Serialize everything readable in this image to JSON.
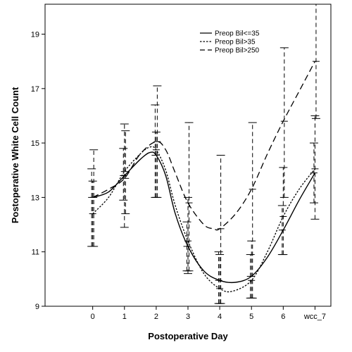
{
  "chart_data": {
    "type": "line",
    "title": "",
    "xlabel": "Postoperative Day",
    "ylabel": "Postoperative White Cell Count",
    "categories": [
      "0",
      "1",
      "2",
      "3",
      "4",
      "5",
      "6",
      "wcc_7"
    ],
    "x_range": [
      -1.5,
      7.5
    ],
    "ylim": [
      9,
      20.1
    ],
    "yticks": [
      9,
      11,
      13,
      15,
      17,
      19
    ],
    "grid": false,
    "legend_position": "top-right",
    "series": [
      {
        "name": "Preop Bil<=35",
        "style": "solid",
        "curve": [
          [
            0,
            13.0
          ],
          [
            0.5,
            13.2
          ],
          [
            1,
            13.8
          ],
          [
            1.5,
            14.4
          ],
          [
            1.8,
            14.65
          ],
          [
            2,
            14.55
          ],
          [
            2.3,
            13.8
          ],
          [
            2.6,
            12.4
          ],
          [
            3,
            11.2
          ],
          [
            3.5,
            10.3
          ],
          [
            4,
            9.95
          ],
          [
            4.5,
            9.88
          ],
          [
            5,
            10.1
          ],
          [
            5.5,
            10.8
          ],
          [
            6,
            11.8
          ],
          [
            6.5,
            12.9
          ],
          [
            7,
            13.9
          ]
        ],
        "error_bars": [
          {
            "x": 0,
            "mean": 13.0,
            "low": 11.2,
            "high": 14.05
          },
          {
            "x": 1,
            "mean": 13.8,
            "low": 12.9,
            "high": 14.8
          },
          {
            "x": 2,
            "mean": 14.55,
            "low": 13.0,
            "high": 16.4
          },
          {
            "x": 3,
            "mean": 11.2,
            "low": 10.3,
            "high": 12.1
          },
          {
            "x": 4,
            "mean": 9.95,
            "low": 9.1,
            "high": 11.0
          },
          {
            "x": 5,
            "mean": 10.1,
            "low": 9.3,
            "high": 10.9
          },
          {
            "x": 6,
            "mean": 11.8,
            "low": 10.9,
            "high": 12.7
          },
          {
            "x": 7,
            "mean": 13.9,
            "low": 12.8,
            "high": 15.0
          }
        ]
      },
      {
        "name": "Preop Bil>35",
        "style": "dotted",
        "curve": [
          [
            0,
            12.4
          ],
          [
            0.5,
            13.0
          ],
          [
            1,
            13.95
          ],
          [
            1.5,
            14.6
          ],
          [
            1.8,
            14.85
          ],
          [
            2,
            14.75
          ],
          [
            2.3,
            14.0
          ],
          [
            2.6,
            12.7
          ],
          [
            3,
            11.4
          ],
          [
            3.5,
            10.2
          ],
          [
            4,
            9.65
          ],
          [
            4.4,
            9.55
          ],
          [
            5,
            9.95
          ],
          [
            5.5,
            11.0
          ],
          [
            6,
            12.3
          ],
          [
            6.5,
            13.3
          ],
          [
            7,
            14.05
          ]
        ],
        "error_bars": [
          {
            "x": 0,
            "mean": 12.4,
            "low": 11.2,
            "high": 13.6
          },
          {
            "x": 1,
            "mean": 13.95,
            "low": 11.9,
            "high": 15.7
          },
          {
            "x": 2,
            "mean": 14.75,
            "low": 13.0,
            "high": 15.4
          },
          {
            "x": 3,
            "mean": 11.4,
            "low": 10.2,
            "high": 13.0
          },
          {
            "x": 4,
            "mean": 9.65,
            "low": 9.1,
            "high": 10.9
          },
          {
            "x": 5,
            "mean": 9.95,
            "low": 9.3,
            "high": 11.4
          },
          {
            "x": 6,
            "mean": 12.3,
            "low": 10.9,
            "high": 14.1
          },
          {
            "x": 7,
            "mean": 14.05,
            "low": 12.2,
            "high": 16.0
          }
        ]
      },
      {
        "name": "Preop Bil>250",
        "style": "dashed",
        "curve": [
          [
            0,
            13.0
          ],
          [
            0.5,
            13.3
          ],
          [
            1,
            13.7
          ],
          [
            1.5,
            14.6
          ],
          [
            2,
            15.05
          ],
          [
            2.3,
            14.75
          ],
          [
            2.6,
            13.9
          ],
          [
            3,
            12.8
          ],
          [
            3.5,
            12.0
          ],
          [
            3.8,
            11.85
          ],
          [
            4,
            11.85
          ],
          [
            4.5,
            12.4
          ],
          [
            5,
            13.3
          ],
          [
            5.5,
            14.6
          ],
          [
            6,
            15.8
          ],
          [
            6.5,
            16.9
          ],
          [
            7,
            18.0
          ]
        ],
        "error_bars": [
          {
            "x": 0,
            "mean": 13.0,
            "low": 11.2,
            "high": 14.75
          },
          {
            "x": 1,
            "mean": 13.7,
            "low": 12.4,
            "high": 15.45
          },
          {
            "x": 2,
            "mean": 15.05,
            "low": 13.0,
            "high": 17.1
          },
          {
            "x": 3,
            "mean": 12.8,
            "low": 10.3,
            "high": 15.75
          },
          {
            "x": 4,
            "mean": 11.85,
            "low": 9.1,
            "high": 14.55
          },
          {
            "x": 5,
            "mean": 13.3,
            "low": 9.3,
            "high": 15.75
          },
          {
            "x": 6,
            "mean": 15.8,
            "low": 13.0,
            "high": 18.5
          },
          {
            "x": 7,
            "mean": 18.0,
            "low": 15.9,
            "high": 20.1
          }
        ]
      }
    ]
  }
}
